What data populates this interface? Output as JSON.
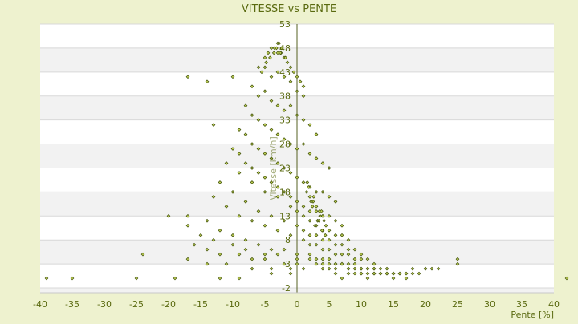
{
  "chart_data": {
    "type": "scatter",
    "title": "VITESSE vs PENTE",
    "xlabel": "Pente [%]",
    "ylabel": "Vitesse [km/h]",
    "xlim": [
      -40,
      40
    ],
    "ylim": [
      -3,
      53
    ],
    "x_ticks": [
      -40,
      -35,
      -30,
      -25,
      -20,
      -15,
      -10,
      -5,
      0,
      5,
      10,
      15,
      20,
      25,
      30,
      35,
      40
    ],
    "x_tick_labels": [
      "-40",
      "-35",
      "-30",
      "-25",
      "-20",
      "-15",
      "-10",
      "-5",
      "0",
      "5",
      "10",
      "15",
      "20",
      "25",
      "30",
      "35",
      "40"
    ],
    "y_ticks": [
      -2,
      3,
      8,
      13,
      18,
      23,
      28,
      33,
      38,
      43,
      48,
      53
    ],
    "y_tick_labels": [
      "-2",
      "3",
      "8",
      "13",
      "18",
      "23",
      "28",
      "33",
      "38",
      "43",
      "48",
      "53"
    ],
    "grid": true,
    "legend": "none",
    "colors": {
      "background": "#eef2cf",
      "plot_band_light": "#ffffff",
      "plot_band_dark": "#f2f2f2",
      "marker_fill": "#c8d85a",
      "marker_edge": "#4a5a10",
      "text": "#5a6a10",
      "axis": "#556020"
    },
    "series": [
      {
        "x": [
          -39,
          -35,
          -25,
          -19,
          -17,
          -14,
          -10,
          -13,
          -20,
          -5,
          -4.5,
          -4,
          -3.5,
          -3,
          -2.5,
          -2,
          -1.5,
          -1,
          -0.5,
          0,
          0.5,
          1,
          -6,
          -5.5,
          -5,
          -4,
          -3,
          -2,
          -1,
          0,
          1,
          -7,
          -6,
          -5,
          -4,
          -3,
          -2,
          -1,
          0,
          1,
          2,
          3,
          -8,
          -7,
          -6,
          -5,
          -4,
          -3,
          -2,
          -1,
          0,
          1,
          2,
          3,
          4,
          5,
          -9,
          -8,
          -7,
          -6,
          -5,
          -4,
          -3,
          -2,
          -1,
          0,
          1,
          2,
          3,
          4,
          5,
          6,
          -10,
          -9,
          -8,
          -7,
          -6,
          -5,
          -4,
          -3,
          -2,
          -1,
          0,
          1,
          2,
          3,
          4,
          5,
          6,
          7,
          -11,
          -9,
          -7,
          -5,
          -3,
          -1,
          0,
          1,
          2,
          3,
          4,
          5,
          6,
          7,
          8,
          -12,
          -10,
          -8,
          -6,
          -4,
          -2,
          0,
          1,
          2,
          3,
          4,
          5,
          6,
          7,
          8,
          9,
          10,
          -13,
          -11,
          -9,
          -7,
          -5,
          -3,
          -1,
          1,
          2,
          3,
          4,
          5,
          6,
          7,
          8,
          9,
          10,
          11,
          12,
          -17,
          -14,
          -12,
          -10,
          -8,
          -6,
          -4,
          -2,
          0,
          2,
          3,
          4,
          5,
          6,
          7,
          8,
          9,
          10,
          11,
          12,
          13,
          14,
          -17,
          -15,
          -13,
          -10,
          -8,
          -5,
          -3,
          0,
          2,
          4,
          5,
          6,
          7,
          8,
          9,
          10,
          11,
          12,
          13,
          14,
          15,
          16,
          17,
          -16,
          -14,
          -12,
          -9,
          -7,
          -5,
          -2,
          0,
          3,
          5,
          6,
          8,
          10,
          11,
          12,
          13,
          14,
          15,
          16,
          18,
          19,
          20,
          22,
          -24,
          -17,
          -14,
          -11,
          -7,
          -4,
          -1,
          1,
          4,
          6,
          8,
          9,
          10,
          12,
          13,
          14,
          15,
          16,
          17,
          18,
          20,
          21,
          25,
          25,
          -12,
          -9,
          -4,
          -1,
          7,
          11,
          12,
          15,
          17,
          42,
          -3,
          -2.8,
          -2.4,
          -3.2,
          -2.6,
          -1.8,
          -4.8,
          -4.2,
          -3.6,
          2.5,
          3,
          3.5,
          4,
          2,
          1.5,
          3.2,
          2.8,
          3.8,
          4.2,
          2.2,
          1.8,
          3.6,
          4.5,
          2.4,
          3.4,
          2.6,
          3.9,
          4.4,
          1.6
        ],
        "y": [
          0,
          0,
          0,
          0,
          42,
          41,
          42,
          32,
          13,
          46,
          47,
          48,
          48,
          47,
          47,
          46,
          45,
          44,
          43,
          42,
          41,
          40,
          44,
          43,
          44,
          42,
          43,
          42,
          41,
          39,
          38,
          40,
          38,
          39,
          37,
          36,
          35,
          36,
          34,
          33,
          32,
          30,
          36,
          34,
          33,
          32,
          31,
          30,
          29,
          28,
          27,
          28,
          26,
          25,
          24,
          23,
          31,
          30,
          28,
          27,
          26,
          25,
          24,
          23,
          22,
          21,
          20,
          19,
          18,
          18,
          17,
          16,
          27,
          26,
          24,
          23,
          22,
          21,
          20,
          19,
          18,
          17,
          16,
          15,
          14,
          14,
          13,
          13,
          12,
          11,
          24,
          22,
          20,
          18,
          17,
          15,
          14,
          13,
          12,
          11,
          10,
          10,
          9,
          9,
          8,
          20,
          18,
          16,
          14,
          13,
          12,
          11,
          10,
          9,
          9,
          8,
          8,
          7,
          7,
          6,
          6,
          5,
          17,
          15,
          13,
          12,
          11,
          10,
          9,
          8,
          7,
          7,
          6,
          6,
          5,
          5,
          5,
          4,
          4,
          4,
          3,
          13,
          12,
          10,
          9,
          8,
          7,
          6,
          6,
          5,
          5,
          4,
          4,
          4,
          3,
          3,
          3,
          3,
          2,
          2,
          2,
          2,
          2,
          11,
          9,
          8,
          7,
          6,
          5,
          5,
          4,
          4,
          3,
          3,
          3,
          3,
          2,
          2,
          2,
          2,
          2,
          1,
          1,
          1,
          1,
          1,
          7,
          6,
          5,
          5,
          4,
          4,
          3,
          3,
          3,
          2,
          2,
          2,
          1,
          1,
          1,
          1,
          1,
          1,
          1,
          1,
          1,
          2,
          2,
          5,
          4,
          3,
          3,
          2,
          2,
          2,
          2,
          2,
          1,
          1,
          1,
          1,
          1,
          1,
          1,
          1,
          1,
          1,
          2,
          2,
          2,
          3,
          4,
          0,
          0,
          1,
          1,
          0,
          0,
          1,
          0,
          0,
          0,
          49,
          49,
          48,
          48,
          47,
          46,
          45,
          46,
          47,
          16,
          15,
          14,
          13,
          17,
          18,
          12,
          11,
          14,
          12,
          16,
          19,
          13,
          11,
          15,
          12,
          17,
          10,
          9,
          20
        ],
        "marker": "diamond"
      }
    ]
  }
}
